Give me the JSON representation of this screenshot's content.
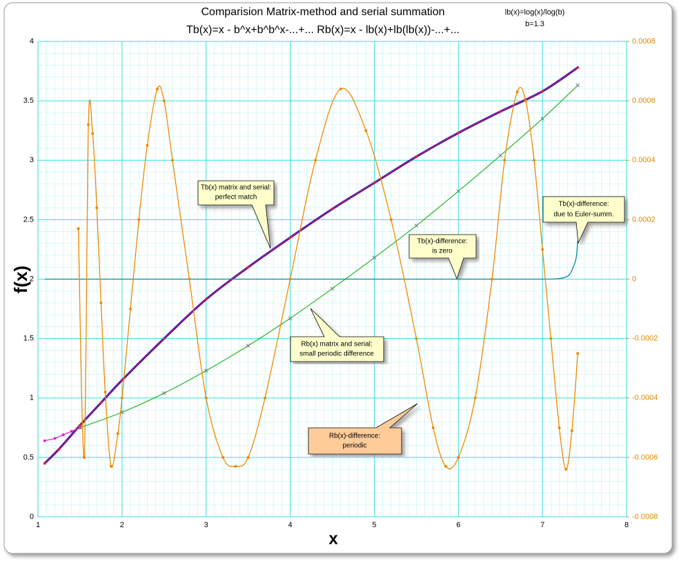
{
  "chart_data": {
    "type": "line",
    "title": "Comparision Matrix-method and serial summation",
    "subtitle": "Tb(x)=x - b^x+b^b^x-...+...    Rb(x)=x - lb(x)+lb(lb(x))-...+...",
    "notes": [
      "lb(x)=log(x)/log(b)",
      "b=1.3"
    ],
    "xlabel": "x",
    "ylabel": "f(x)",
    "xlim": [
      1,
      8
    ],
    "xticks": [
      1,
      2,
      3,
      4,
      5,
      6,
      7,
      8
    ],
    "ylim": [
      0,
      4
    ],
    "yticks": [
      0,
      0.5,
      1,
      1.5,
      2,
      2.5,
      3,
      3.5,
      4
    ],
    "y2lim": [
      -0.0008,
      0.0008
    ],
    "y2ticks": [
      -0.0008,
      -0.0006,
      -0.0004,
      -0.0002,
      0,
      0.0002,
      0.0004,
      0.0006,
      0.0008
    ],
    "grid": true,
    "series": [
      {
        "color": "#0000cc",
        "marker": "none",
        "x": [
          1.08,
          1.25,
          1.5,
          1.75,
          2,
          2.5,
          3,
          3.5,
          4,
          4.5,
          5,
          5.5,
          6,
          6.5,
          7,
          7.42
        ],
        "values": [
          0.45,
          0.57,
          0.77,
          0.96,
          1.15,
          1.5,
          1.83,
          2.1,
          2.35,
          2.59,
          2.81,
          3.03,
          3.23,
          3.41,
          3.58,
          3.78
        ]
      },
      {
        "color": "#dd2244",
        "marker": "dot",
        "x": [
          1.08,
          1.25,
          1.5,
          1.75,
          2,
          2.5,
          3,
          3.5,
          4,
          4.5,
          5,
          5.5,
          6,
          6.5,
          7,
          7.42
        ],
        "values": [
          0.45,
          0.57,
          0.77,
          0.96,
          1.15,
          1.5,
          1.83,
          2.1,
          2.35,
          2.59,
          2.81,
          3.03,
          3.23,
          3.41,
          3.58,
          3.78
        ]
      },
      {
        "color": "#dd22dd",
        "marker": "dot",
        "x": [
          1.08,
          1.2,
          1.3,
          1.4,
          1.5
        ],
        "values": [
          0.64,
          0.66,
          0.69,
          0.72,
          0.75
        ]
      },
      {
        "color": "#33bb33",
        "marker": "cross",
        "x": [
          1.5,
          2,
          2.5,
          3,
          3.5,
          4,
          4.5,
          5,
          5.5,
          6,
          6.5,
          7,
          7.42
        ],
        "values": [
          0.75,
          0.88,
          1.04,
          1.23,
          1.44,
          1.67,
          1.92,
          2.18,
          2.45,
          2.74,
          3.04,
          3.35,
          3.63
        ]
      },
      {
        "color": "#008b9b",
        "marker": "none",
        "axis": "y2",
        "x": [
          1.08,
          2,
          3,
          4,
          5,
          6,
          7,
          7.2,
          7.3,
          7.35,
          7.4,
          7.42
        ],
        "values": [
          0,
          0,
          0,
          0,
          0,
          0,
          0,
          2e-06,
          1e-05,
          3e-05,
          7e-05,
          0.00013
        ]
      },
      {
        "color": "#ee8800",
        "marker": "dot",
        "axis": "y2",
        "x": [
          1.48,
          1.55,
          1.6,
          1.65,
          1.7,
          1.75,
          1.8,
          1.87,
          1.95,
          2.0,
          2.1,
          2.2,
          2.3,
          2.42,
          2.5,
          2.6,
          2.8,
          3.0,
          3.2,
          3.35,
          3.5,
          3.7,
          4.0,
          4.3,
          4.6,
          4.9,
          5.2,
          5.5,
          5.7,
          5.85,
          6.0,
          6.2,
          6.4,
          6.55,
          6.7,
          6.8,
          6.9,
          7.0,
          7.1,
          7.2,
          7.28,
          7.35,
          7.42
        ],
        "values": [
          0.00017,
          -0.0006,
          0.00052,
          0.00049,
          0.00024,
          -8e-05,
          -0.00038,
          -0.00063,
          -0.00052,
          -0.0004,
          -0.0001,
          0.0002,
          0.00045,
          0.00064,
          0.0006,
          0.0004,
          0.0,
          -0.0004,
          -0.0006,
          -0.00063,
          -0.0006,
          -0.0004,
          0.0,
          0.0004,
          0.00064,
          0.0005,
          0.0002,
          -0.0002,
          -0.0005,
          -0.00063,
          -0.0006,
          -0.0004,
          0.0,
          0.0004,
          0.00063,
          0.0006,
          0.0004,
          0.0001,
          -0.0002,
          -0.0005,
          -0.00064,
          -0.00051,
          -0.00025
        ]
      }
    ],
    "annotations": [
      {
        "lines": [
          "Tb(x) matrix and serial:",
          "perfect match"
        ]
      },
      {
        "lines": [
          "Tb(x)-difference:",
          "is zero"
        ]
      },
      {
        "lines": [
          "Tb(x)-difference:",
          "due to Euler-summ."
        ]
      },
      {
        "lines": [
          "Rb(x) matrix and serial:",
          "small periodic difference"
        ]
      },
      {
        "lines": [
          "Rb(x)-difference:",
          "periodic"
        ]
      }
    ]
  }
}
